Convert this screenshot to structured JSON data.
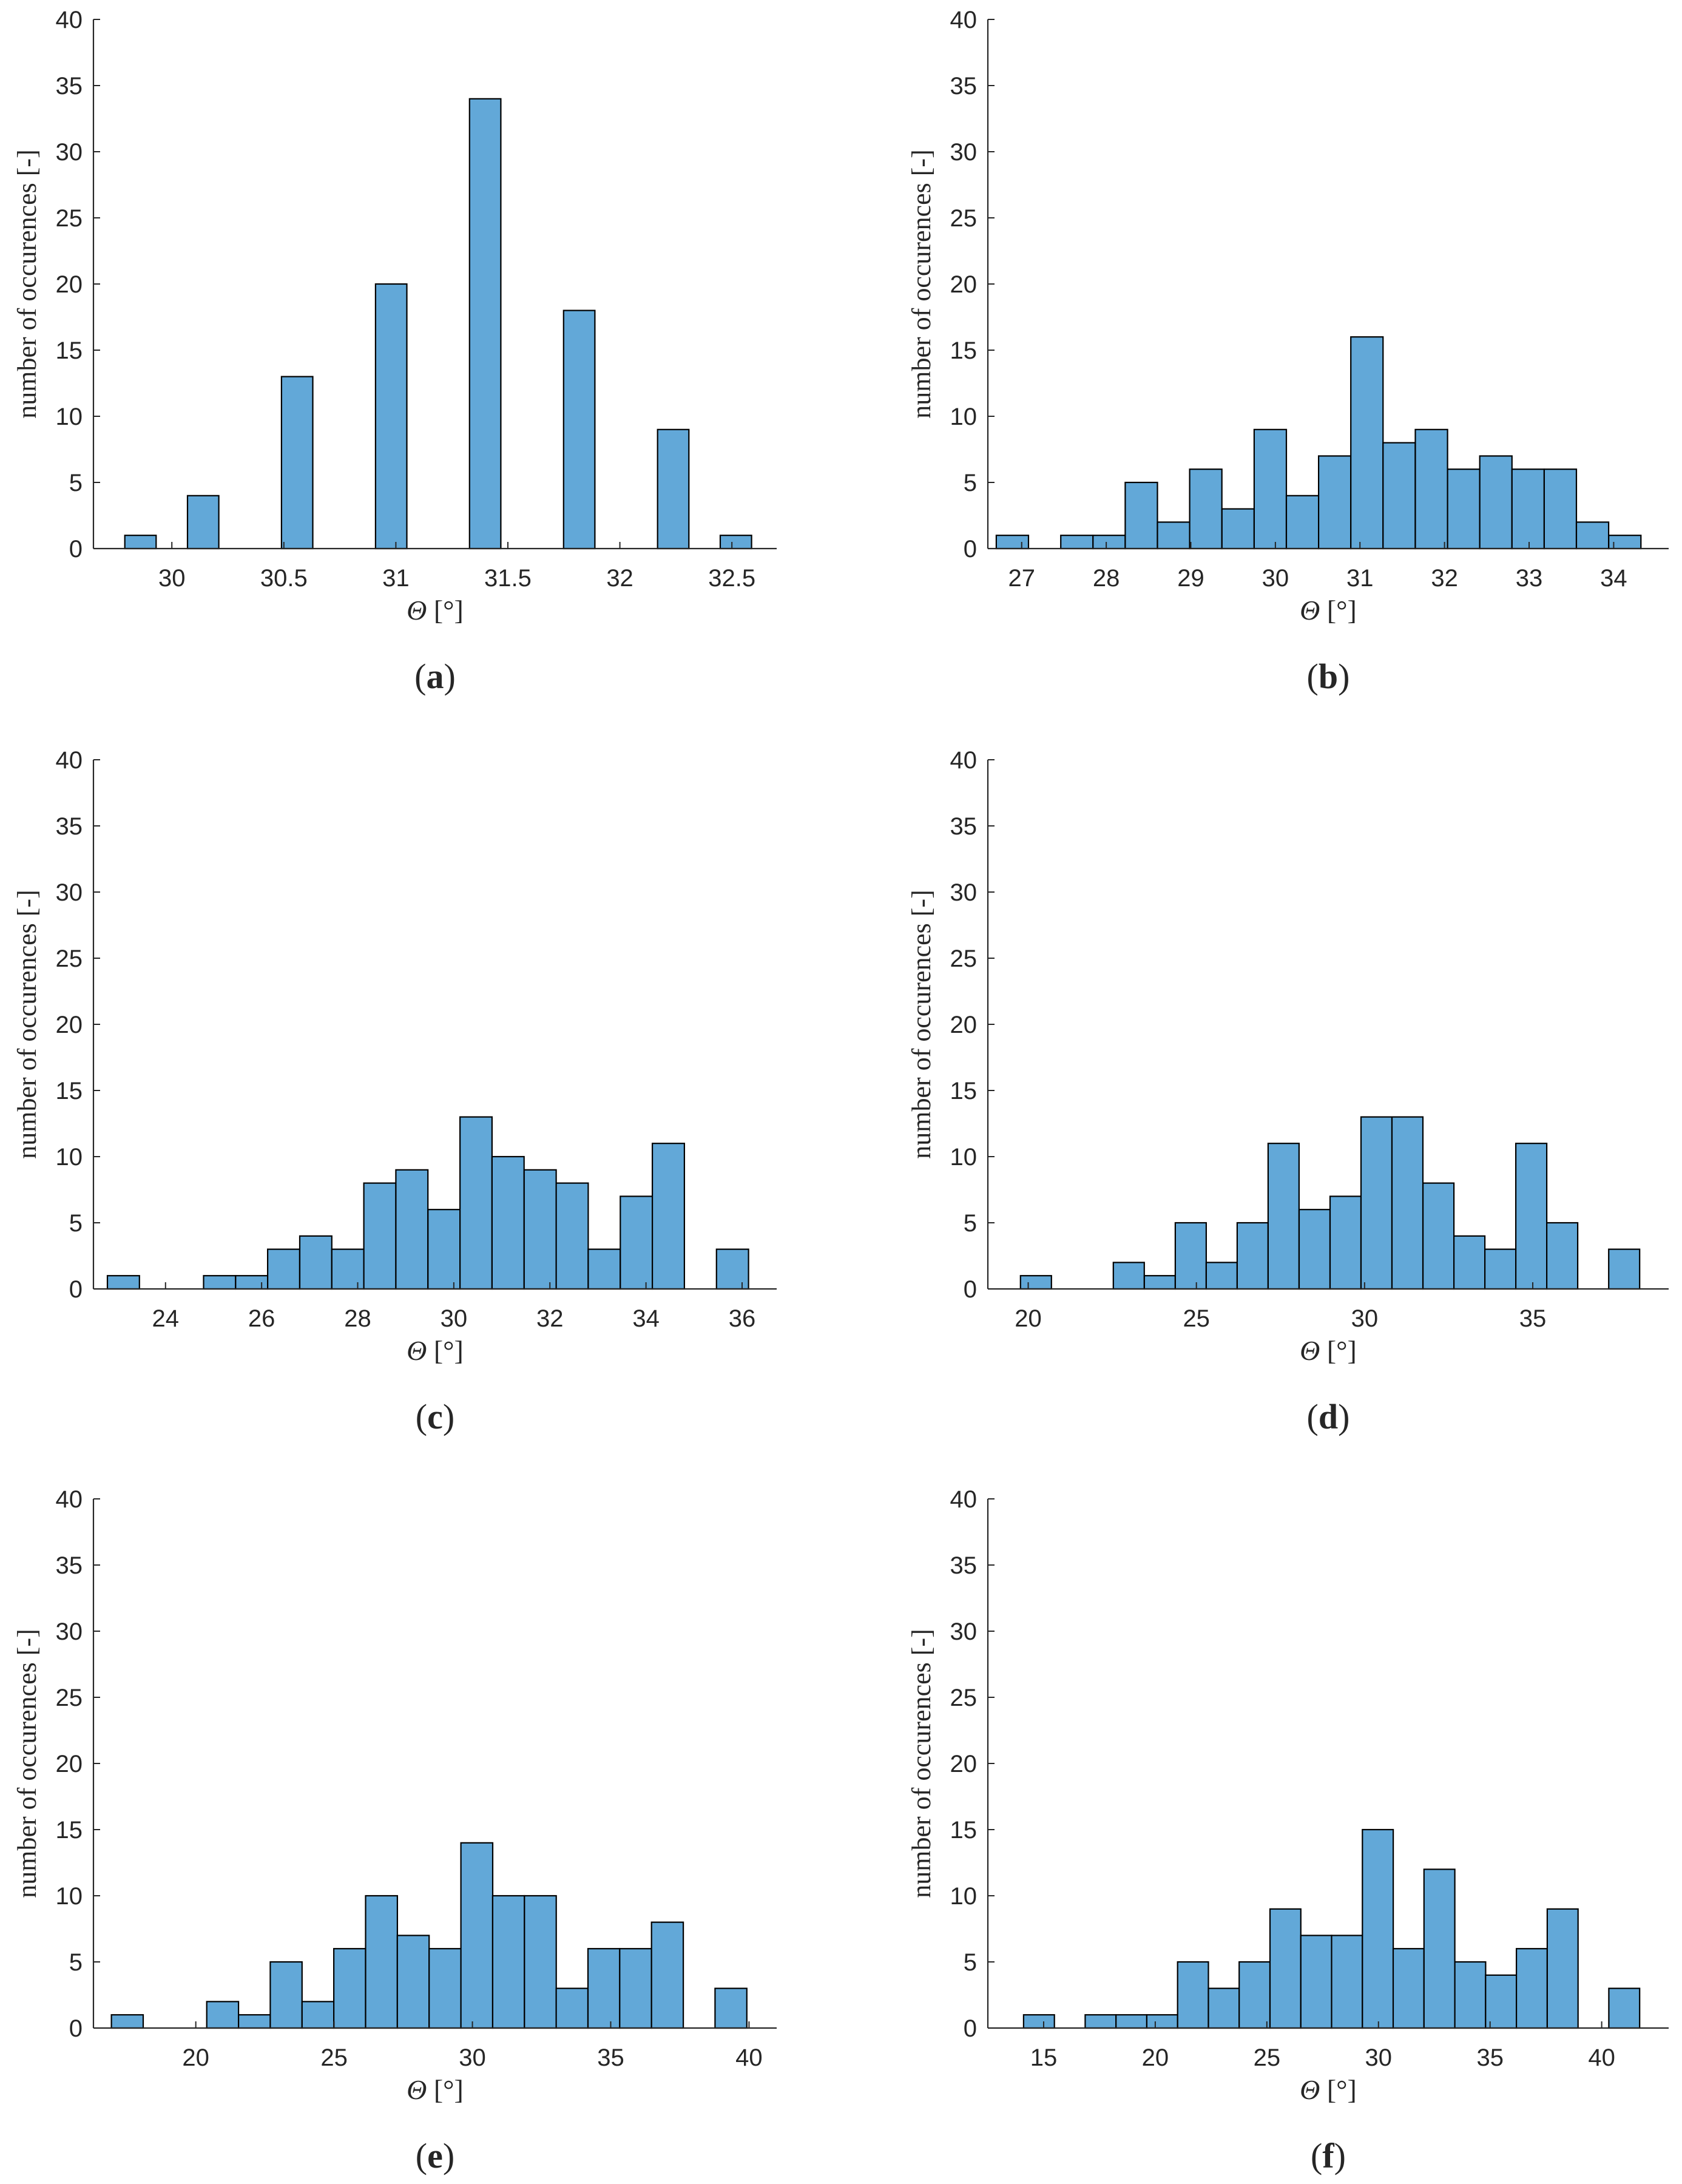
{
  "chart_data": [
    {
      "type": "bar",
      "panel_label": "a",
      "xlabel_symbol": "Θ",
      "xlabel_unit": "[°]",
      "ylabel": "number of occurences [-]",
      "ylim": [
        0,
        40
      ],
      "xlim": [
        29.65,
        32.7
      ],
      "yticks": [
        0,
        5,
        10,
        15,
        20,
        25,
        30,
        35,
        40
      ],
      "xticks": [
        30,
        30.5,
        31,
        31.5,
        32,
        32.5
      ],
      "xtick_labels": [
        "30",
        "30.5",
        "31",
        "31.5",
        "32",
        "32.5"
      ],
      "bin_start": 29.79,
      "bin_width": 0.1399,
      "values": [
        1,
        0,
        4,
        0,
        0,
        13,
        0,
        0,
        20,
        0,
        0,
        34,
        0,
        0,
        18,
        0,
        0,
        9,
        0,
        1
      ]
    },
    {
      "type": "bar",
      "panel_label": "b",
      "xlabel_symbol": "Θ",
      "xlabel_unit": "[°]",
      "ylabel": "number of occurences [-]",
      "ylim": [
        0,
        40
      ],
      "xlim": [
        26.6,
        34.65
      ],
      "yticks": [
        0,
        5,
        10,
        15,
        20,
        25,
        30,
        35,
        40
      ],
      "xticks": [
        27,
        28,
        29,
        30,
        31,
        32,
        33,
        34
      ],
      "xtick_labels": [
        "27",
        "28",
        "29",
        "30",
        "31",
        "32",
        "33",
        "34"
      ],
      "bin_start": 26.7,
      "bin_width": 0.3811,
      "values": [
        1,
        0,
        1,
        1,
        5,
        2,
        6,
        3,
        9,
        4,
        7,
        16,
        8,
        9,
        6,
        7,
        6,
        6,
        2,
        1
      ]
    },
    {
      "type": "bar",
      "panel_label": "c",
      "xlabel_symbol": "Θ",
      "xlabel_unit": "[°]",
      "ylabel": "number of occurences [-]",
      "ylim": [
        0,
        40
      ],
      "xlim": [
        22.5,
        36.72
      ],
      "yticks": [
        0,
        5,
        10,
        15,
        20,
        25,
        30,
        35,
        40
      ],
      "xticks": [
        24,
        26,
        28,
        30,
        32,
        34,
        36
      ],
      "xtick_labels": [
        "24",
        "26",
        "28",
        "30",
        "32",
        "34",
        "36"
      ],
      "bin_start": 22.79,
      "bin_width": 0.6672,
      "values": [
        1,
        0,
        0,
        1,
        1,
        3,
        4,
        3,
        8,
        9,
        6,
        13,
        10,
        9,
        8,
        3,
        7,
        11,
        0,
        3
      ]
    },
    {
      "type": "bar",
      "panel_label": "d",
      "xlabel_symbol": "Θ",
      "xlabel_unit": "[°]",
      "ylabel": "number of occurences [-]",
      "ylim": [
        0,
        40
      ],
      "xlim": [
        18.8,
        39.04
      ],
      "yticks": [
        0,
        5,
        10,
        15,
        20,
        25,
        30,
        35,
        40
      ],
      "xticks": [
        20,
        25,
        30,
        35
      ],
      "xtick_labels": [
        "20",
        "25",
        "30",
        "35"
      ],
      "bin_start": 19.77,
      "bin_width": 0.9204,
      "values": [
        1,
        0,
        0,
        2,
        1,
        5,
        2,
        5,
        11,
        6,
        7,
        13,
        13,
        8,
        4,
        3,
        11,
        5,
        0,
        3
      ]
    },
    {
      "type": "bar",
      "panel_label": "e",
      "xlabel_symbol": "Θ",
      "xlabel_unit": "[°]",
      "ylabel": "number of occurences [-]",
      "ylim": [
        0,
        40
      ],
      "xlim": [
        16.3,
        41.0
      ],
      "yticks": [
        0,
        5,
        10,
        15,
        20,
        25,
        30,
        35,
        40
      ],
      "xticks": [
        20,
        25,
        30,
        35,
        40
      ],
      "xtick_labels": [
        "20",
        "25",
        "30",
        "35",
        "40"
      ],
      "bin_start": 16.95,
      "bin_width": 1.1485,
      "values": [
        1,
        0,
        0,
        2,
        1,
        5,
        2,
        6,
        10,
        7,
        6,
        14,
        10,
        10,
        3,
        6,
        6,
        8,
        0,
        3
      ]
    },
    {
      "type": "bar",
      "panel_label": "f",
      "xlabel_symbol": "Θ",
      "xlabel_unit": "[°]",
      "ylabel": "number of occurences [-]",
      "ylim": [
        0,
        40
      ],
      "xlim": [
        12.5,
        43.0
      ],
      "yticks": [
        0,
        5,
        10,
        15,
        20,
        25,
        30,
        35,
        40
      ],
      "xticks": [
        15,
        20,
        25,
        30,
        35,
        40
      ],
      "xtick_labels": [
        "15",
        "20",
        "25",
        "30",
        "35",
        "40"
      ],
      "bin_start": 14.1,
      "bin_width": 1.38,
      "values": [
        1,
        0,
        1,
        1,
        1,
        5,
        3,
        5,
        9,
        7,
        7,
        15,
        6,
        12,
        5,
        4,
        6,
        9,
        0,
        3
      ]
    }
  ],
  "colors": {
    "bar_fill": "#62A8D8",
    "bar_edge": "#000000",
    "axis": "#262626"
  }
}
